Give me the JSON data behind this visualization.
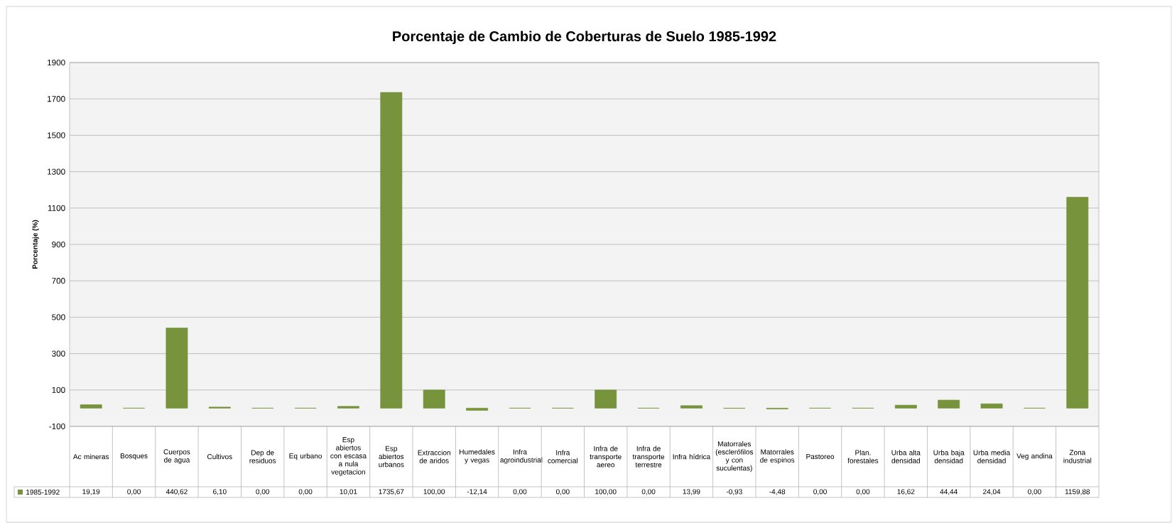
{
  "chart_data": {
    "type": "bar",
    "title": "Porcentaje de Cambio de Coberturas de Suelo 1985-1992",
    "ylabel": "Porcentaje (%)",
    "categories": [
      "Ac mineras",
      "Bosques",
      "Cuerpos de agua",
      "Cultivos",
      "Dep de residuos",
      "Eq urbano",
      "Esp abiertos con escasa a nula vegetacion",
      "Esp abiertos urbanos",
      "Extraccion de aridos",
      "Humedales y vegas",
      "Infra agroindustrial",
      "Infra comercial",
      "Infra de transporte aereo",
      "Infra de transporte terrestre",
      "Infra hídrica",
      "Matorrales (esclerófilos y con suculentas)",
      "Matorrales de espinos",
      "Pastoreo",
      "Plan. forestales",
      "Urba alta densidad",
      "Urba baja densidad",
      "Urba media densidad",
      "Veg andina",
      "Zona industrial"
    ],
    "series": [
      {
        "name": "1985-1992",
        "color": "#77933c",
        "values": [
          19.19,
          0.0,
          440.62,
          6.1,
          0.0,
          0.0,
          10.01,
          1735.67,
          100.0,
          -12.14,
          0.0,
          0.0,
          100.0,
          0.0,
          13.99,
          -0.93,
          -4.48,
          0.0,
          0.0,
          16.62,
          44.44,
          24.04,
          0.0,
          1159.88
        ],
        "value_labels": [
          "19,19",
          "0,00",
          "440,62",
          "6,10",
          "0,00",
          "0,00",
          "10,01",
          "1735,67",
          "100,00",
          "-12,14",
          "0,00",
          "0,00",
          "100,00",
          "0,00",
          "13,99",
          "-0,93",
          "-4,48",
          "0,00",
          "0,00",
          "16,62",
          "44,44",
          "24,04",
          "0,00",
          "1159,88"
        ]
      }
    ],
    "ylim": [
      -100,
      1900
    ],
    "yticks": [
      -100,
      100,
      300,
      500,
      700,
      900,
      1100,
      1300,
      1500,
      1700,
      1900
    ],
    "grid": "y",
    "legend": "bottom left"
  }
}
